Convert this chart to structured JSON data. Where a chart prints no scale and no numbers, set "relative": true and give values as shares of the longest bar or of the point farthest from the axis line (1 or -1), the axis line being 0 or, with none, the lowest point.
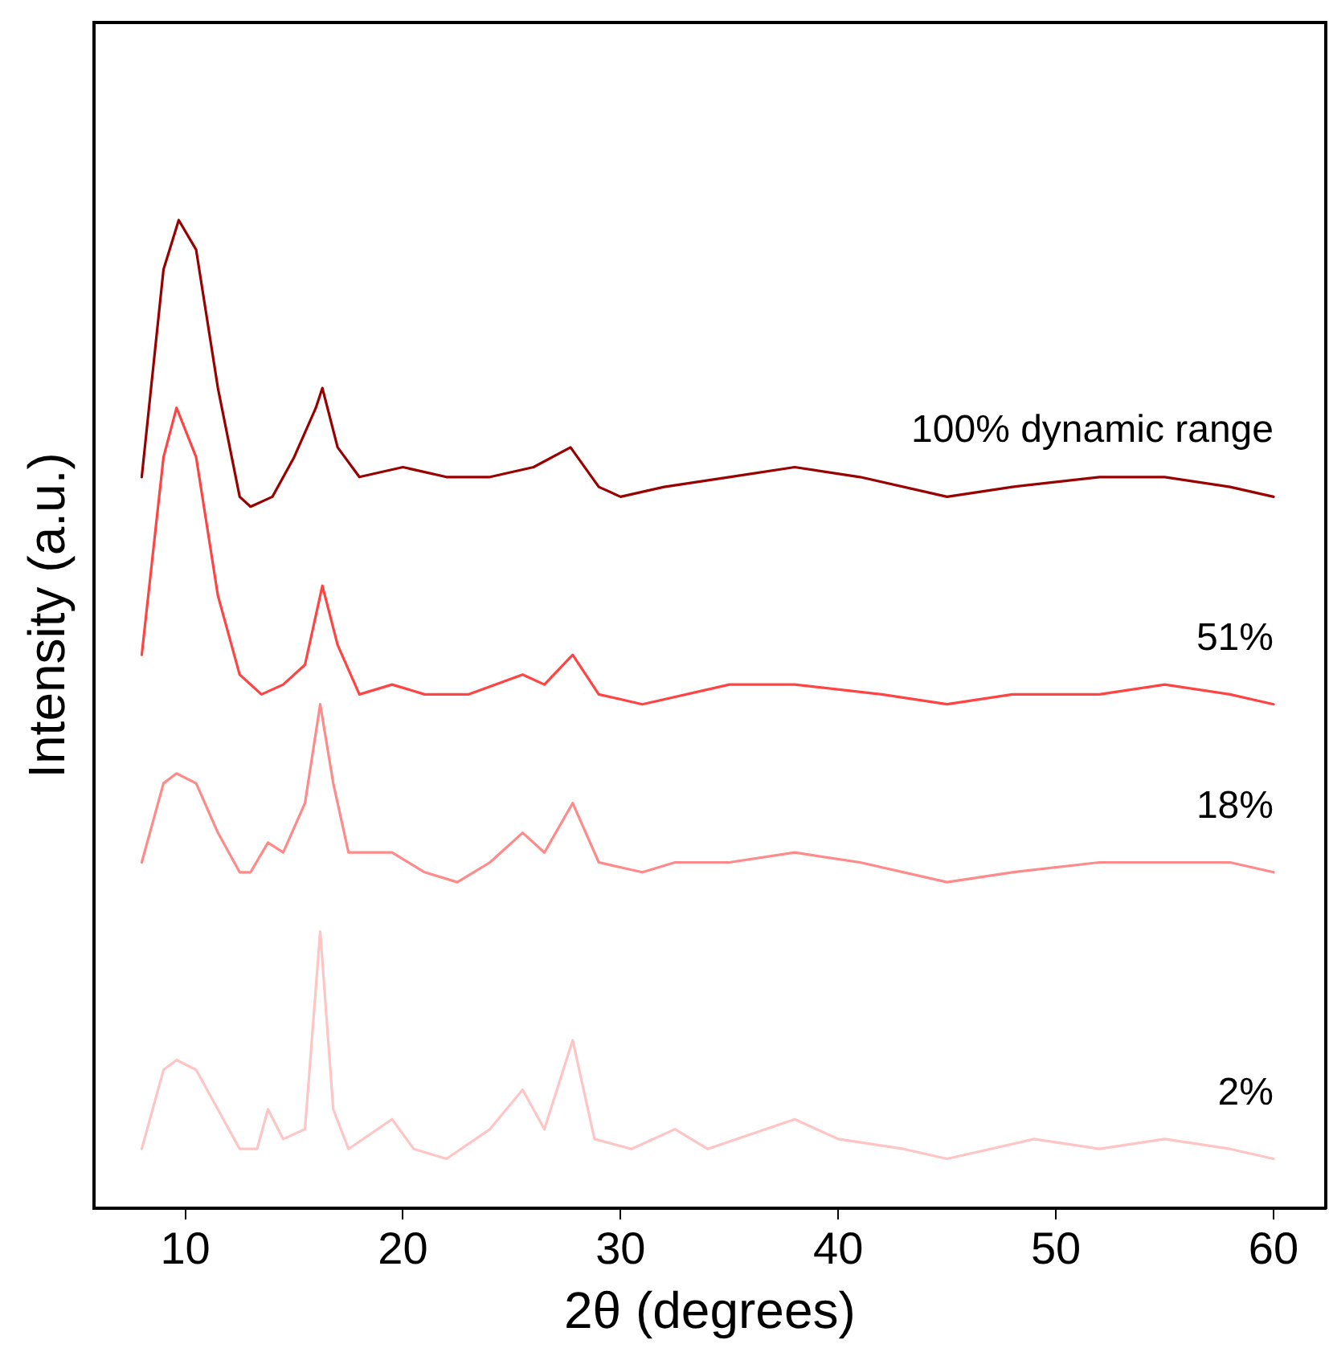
{
  "chart_data": {
    "type": "line",
    "relative": true,
    "xlabel": "2θ (degrees)",
    "ylabel": "Intensity (a.u.)",
    "xlim": [
      5.8,
      62.4
    ],
    "xticks": [
      10,
      20,
      30,
      40,
      50,
      60
    ],
    "grid": false,
    "legend": false,
    "marker": "none",
    "line_style": "solid",
    "series": [
      {
        "name": "100% dynamic range",
        "color": "#990000",
        "x": [
          8,
          9,
          9.7,
          10.5,
          11.5,
          12.5,
          13,
          14,
          15,
          16,
          16.3,
          17,
          18,
          20,
          22,
          24,
          26,
          27.7,
          29,
          30,
          32,
          35,
          38,
          41,
          45,
          48,
          52,
          55,
          58,
          60
        ],
        "values": [
          0.74,
          0.95,
          1.0,
          0.97,
          0.83,
          0.72,
          0.71,
          0.72,
          0.76,
          0.81,
          0.83,
          0.77,
          0.74,
          0.75,
          0.74,
          0.74,
          0.75,
          0.77,
          0.73,
          0.72,
          0.73,
          0.74,
          0.75,
          0.74,
          0.72,
          0.73,
          0.74,
          0.74,
          0.73,
          0.72
        ]
      },
      {
        "name": "51%",
        "color": "#ff4444",
        "x": [
          8,
          9,
          9.6,
          10.5,
          11.5,
          12.5,
          13.5,
          14.5,
          15.5,
          16.3,
          17,
          18,
          19.5,
          21,
          23,
          25.5,
          26.5,
          27.8,
          29,
          31,
          35,
          38,
          42,
          45,
          48,
          52,
          55,
          58,
          60
        ],
        "values": [
          0.56,
          0.76,
          0.81,
          0.76,
          0.62,
          0.54,
          0.52,
          0.53,
          0.55,
          0.63,
          0.57,
          0.52,
          0.53,
          0.52,
          0.52,
          0.54,
          0.53,
          0.56,
          0.52,
          0.51,
          0.53,
          0.53,
          0.52,
          0.51,
          0.52,
          0.52,
          0.53,
          0.52,
          0.51
        ]
      },
      {
        "name": "18%",
        "color": "#ff8a8a",
        "x": [
          8,
          9,
          9.6,
          10.5,
          11.5,
          12.5,
          13,
          13.8,
          14.5,
          15.5,
          16.2,
          16.8,
          17.5,
          19.5,
          21,
          22.5,
          24,
          25.5,
          26.5,
          27.8,
          29,
          31,
          32.5,
          35,
          38,
          41,
          45,
          48,
          52,
          55,
          58,
          60
        ],
        "values": [
          0.35,
          0.43,
          0.44,
          0.43,
          0.38,
          0.34,
          0.34,
          0.37,
          0.36,
          0.41,
          0.51,
          0.43,
          0.36,
          0.36,
          0.34,
          0.33,
          0.35,
          0.38,
          0.36,
          0.41,
          0.35,
          0.34,
          0.35,
          0.35,
          0.36,
          0.35,
          0.33,
          0.34,
          0.35,
          0.35,
          0.35,
          0.34
        ]
      },
      {
        "name": "2%",
        "color": "#ffc4c4",
        "x": [
          8,
          9,
          9.6,
          10.5,
          11.5,
          12.5,
          13.3,
          13.8,
          14.5,
          15.5,
          16.2,
          16.8,
          17.5,
          19.5,
          20.5,
          22,
          24,
          25.5,
          26.5,
          27.8,
          28.8,
          30.5,
          32.5,
          34,
          38,
          40,
          43,
          45,
          49,
          52,
          55,
          58,
          60
        ],
        "values": [
          0.06,
          0.14,
          0.15,
          0.14,
          0.1,
          0.06,
          0.06,
          0.1,
          0.07,
          0.08,
          0.28,
          0.1,
          0.06,
          0.09,
          0.06,
          0.05,
          0.08,
          0.12,
          0.08,
          0.17,
          0.07,
          0.06,
          0.08,
          0.06,
          0.09,
          0.07,
          0.06,
          0.05,
          0.07,
          0.06,
          0.07,
          0.06,
          0.05
        ]
      }
    ]
  }
}
